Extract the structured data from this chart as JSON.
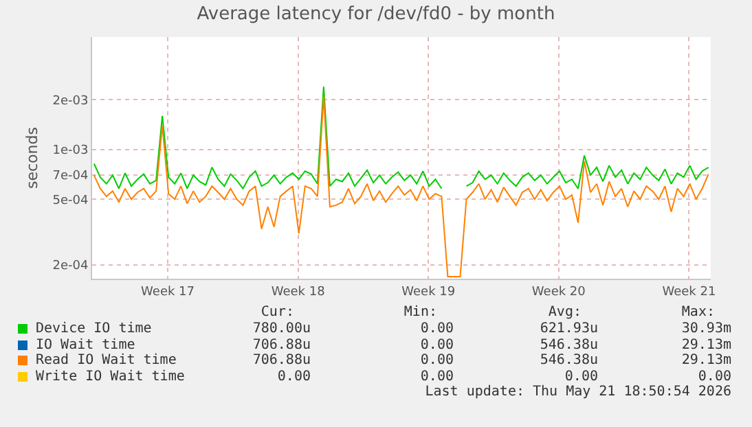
{
  "chart_data": {
    "type": "line",
    "title": "Average latency for /dev/fd0 - by month",
    "ylabel": "seconds",
    "log": true,
    "grid": true,
    "legend": "bottom",
    "xlim": [
      "2026-04-18T13:30",
      "2026-05-21T19:00"
    ],
    "xticks": [
      {
        "value": "2026-04-22T15:00",
        "label": "Week 17"
      },
      {
        "value": "2026-04-29T15:00",
        "label": "Week 18"
      },
      {
        "value": "2026-05-06T15:00",
        "label": "Week 19"
      },
      {
        "value": "2026-05-13T15:00",
        "label": "Week 20"
      },
      {
        "value": "2026-05-20T15:00",
        "label": "Week 21"
      }
    ],
    "ylim": [
      0.000165,
      0.0048
    ],
    "yticks": [
      {
        "value": 0.0002,
        "label": "2e-04"
      },
      {
        "value": 0.0005,
        "label": "5e-04"
      },
      {
        "value": 0.0007,
        "label": "7e-04"
      },
      {
        "value": 0.001,
        "label": "1e-03"
      },
      {
        "value": 0.002,
        "label": "2e-03"
      }
    ],
    "x": [
      "2026-04-18T16:00",
      "2026-04-19T00:00",
      "2026-04-19T08:00",
      "2026-04-19T16:00",
      "2026-04-20T00:00",
      "2026-04-20T08:00",
      "2026-04-20T16:00",
      "2026-04-21T00:00",
      "2026-04-21T08:00",
      "2026-04-21T16:00",
      "2026-04-22T00:00",
      "2026-04-22T08:00",
      "2026-04-22T16:00",
      "2026-04-23T00:00",
      "2026-04-23T08:00",
      "2026-04-23T16:00",
      "2026-04-24T00:00",
      "2026-04-24T08:00",
      "2026-04-24T16:00",
      "2026-04-25T00:00",
      "2026-04-25T08:00",
      "2026-04-25T16:00",
      "2026-04-26T00:00",
      "2026-04-26T08:00",
      "2026-04-26T16:00",
      "2026-04-27T00:00",
      "2026-04-27T08:00",
      "2026-04-27T16:00",
      "2026-04-28T00:00",
      "2026-04-28T08:00",
      "2026-04-28T16:00",
      "2026-04-29T00:00",
      "2026-04-29T08:00",
      "2026-04-29T16:00",
      "2026-04-30T00:00",
      "2026-04-30T08:00",
      "2026-04-30T16:00",
      "2026-05-01T00:00",
      "2026-05-01T08:00",
      "2026-05-01T16:00",
      "2026-05-02T00:00",
      "2026-05-02T08:00",
      "2026-05-02T16:00",
      "2026-05-03T00:00",
      "2026-05-03T08:00",
      "2026-05-03T16:00",
      "2026-05-04T00:00",
      "2026-05-04T08:00",
      "2026-05-04T16:00",
      "2026-05-05T00:00",
      "2026-05-05T08:00",
      "2026-05-05T16:00",
      "2026-05-06T00:00",
      "2026-05-06T08:00",
      "2026-05-06T16:00",
      "2026-05-07T00:00",
      "2026-05-07T08:00",
      "2026-05-07T16:00",
      "2026-05-08T00:00",
      "2026-05-08T08:00",
      "2026-05-08T16:00",
      "2026-05-09T00:00",
      "2026-05-09T08:00",
      "2026-05-09T16:00",
      "2026-05-10T00:00",
      "2026-05-10T08:00",
      "2026-05-10T16:00",
      "2026-05-11T00:00",
      "2026-05-11T08:00",
      "2026-05-11T16:00",
      "2026-05-12T00:00",
      "2026-05-12T08:00",
      "2026-05-12T16:00",
      "2026-05-13T00:00",
      "2026-05-13T08:00",
      "2026-05-13T16:00",
      "2026-05-14T00:00",
      "2026-05-14T08:00",
      "2026-05-14T16:00",
      "2026-05-15T00:00",
      "2026-05-15T08:00",
      "2026-05-15T16:00",
      "2026-05-16T00:00",
      "2026-05-16T08:00",
      "2026-05-16T16:00",
      "2026-05-17T00:00",
      "2026-05-17T08:00",
      "2026-05-17T16:00",
      "2026-05-18T00:00",
      "2026-05-18T08:00",
      "2026-05-18T16:00",
      "2026-05-19T00:00",
      "2026-05-19T08:00",
      "2026-05-19T16:00",
      "2026-05-20T00:00",
      "2026-05-20T08:00",
      "2026-05-20T16:00",
      "2026-05-21T00:00",
      "2026-05-21T08:00",
      "2026-05-21T16:00"
    ],
    "series": [
      {
        "name": "Device IO time",
        "color": "#00cc00",
        "values": [
          0.00082,
          0.00068,
          0.00062,
          0.0007,
          0.00058,
          0.00072,
          0.0006,
          0.00066,
          0.00071,
          0.00062,
          0.00065,
          0.0016,
          0.00068,
          0.00062,
          0.00072,
          0.00058,
          0.0007,
          0.00064,
          0.00061,
          0.00078,
          0.00066,
          0.0006,
          0.00071,
          0.00065,
          0.00058,
          0.00068,
          0.00074,
          0.0006,
          0.00063,
          0.0007,
          0.00062,
          0.00068,
          0.00072,
          0.00066,
          0.00074,
          0.00071,
          0.00062,
          0.0024,
          0.0006,
          0.00066,
          0.00064,
          0.00072,
          0.0006,
          0.00067,
          0.00075,
          0.00063,
          0.0007,
          0.00062,
          0.00068,
          0.00073,
          0.00065,
          0.0007,
          0.00062,
          0.00074,
          0.0006,
          0.00066,
          0.00058,
          null,
          null,
          null,
          0.0006,
          0.00063,
          0.00074,
          0.00066,
          0.0007,
          0.00062,
          0.00072,
          0.00065,
          0.0006,
          0.00068,
          0.00072,
          0.00065,
          0.0007,
          0.00062,
          0.00068,
          0.00074,
          0.00063,
          0.00066,
          0.00058,
          0.00092,
          0.0007,
          0.00078,
          0.00064,
          0.0008,
          0.00068,
          0.00075,
          0.00062,
          0.00072,
          0.00066,
          0.00078,
          0.0007,
          0.00065,
          0.00076,
          0.00062,
          0.00072,
          0.00068,
          0.0008,
          0.00066,
          0.00074,
          0.00078
        ]
      },
      {
        "name": "IO Wait time",
        "color": "#0066b3",
        "values": [
          null,
          null,
          null,
          null,
          null,
          null,
          null,
          null,
          null,
          null,
          null,
          null,
          null,
          null,
          null,
          null,
          null,
          null,
          null,
          null,
          null,
          null,
          null,
          null,
          null,
          null,
          null,
          null,
          null,
          null,
          null,
          null,
          null,
          null,
          null,
          null,
          null,
          null,
          null,
          null,
          null,
          null,
          null,
          null,
          null,
          null,
          null,
          null,
          null,
          null,
          null,
          null,
          null,
          null,
          null,
          null,
          null,
          null,
          null,
          null,
          null,
          null,
          null,
          null,
          null,
          null,
          null,
          null,
          null,
          null,
          null,
          null,
          null,
          null,
          null,
          null,
          null,
          null,
          null,
          null,
          null,
          null,
          null,
          null,
          null,
          null,
          null,
          null,
          null,
          null,
          null,
          null,
          null,
          null,
          null,
          null,
          null,
          null,
          null,
          null
        ]
      },
      {
        "name": "Read IO Wait time",
        "color": "#ff8000",
        "values": [
          0.0007,
          0.00058,
          0.00052,
          0.00056,
          0.00048,
          0.00058,
          0.0005,
          0.00055,
          0.00058,
          0.00051,
          0.00056,
          0.0014,
          0.00054,
          0.0005,
          0.0006,
          0.00047,
          0.00056,
          0.00048,
          0.00052,
          0.0006,
          0.00055,
          0.0005,
          0.00058,
          0.0005,
          0.00046,
          0.00056,
          0.0006,
          0.00033,
          0.00045,
          0.00034,
          0.00052,
          0.00056,
          0.0006,
          0.00031,
          0.0006,
          0.00058,
          0.00052,
          0.0021,
          0.00045,
          0.00046,
          0.00048,
          0.00058,
          0.00047,
          0.00052,
          0.00062,
          0.00049,
          0.00056,
          0.00048,
          0.00054,
          0.0006,
          0.00053,
          0.00057,
          0.00049,
          0.0006,
          0.0005,
          0.00054,
          0.00052,
          0.00017,
          0.00017,
          0.00017,
          0.0005,
          0.00055,
          0.00062,
          0.0005,
          0.00057,
          0.00048,
          0.00059,
          0.00052,
          0.00046,
          0.00055,
          0.00058,
          0.0005,
          0.00057,
          0.00049,
          0.00055,
          0.0006,
          0.0005,
          0.00053,
          0.00036,
          0.00085,
          0.00055,
          0.00062,
          0.00046,
          0.00064,
          0.00052,
          0.00058,
          0.00045,
          0.00056,
          0.0005,
          0.0006,
          0.00056,
          0.0005,
          0.0006,
          0.00042,
          0.00058,
          0.00052,
          0.00062,
          0.0005,
          0.00058,
          0.00071
        ]
      },
      {
        "name": "Write IO Wait time",
        "color": "#ffcc00",
        "values": [
          null,
          null,
          null,
          null,
          null,
          null,
          null,
          null,
          null,
          null,
          null,
          null,
          null,
          null,
          null,
          null,
          null,
          null,
          null,
          null,
          null,
          null,
          null,
          null,
          null,
          null,
          null,
          null,
          null,
          null,
          null,
          null,
          null,
          null,
          null,
          null,
          null,
          null,
          null,
          null,
          null,
          null,
          null,
          null,
          null,
          null,
          null,
          null,
          null,
          null,
          null,
          null,
          null,
          null,
          null,
          null,
          null,
          null,
          null,
          null,
          null,
          null,
          null,
          null,
          null,
          null,
          null,
          null,
          null,
          null,
          null,
          null,
          null,
          null,
          null,
          null,
          null,
          null,
          null,
          null,
          null,
          null,
          null,
          null,
          null,
          null,
          null,
          null,
          null,
          null,
          null,
          null,
          null,
          null,
          null,
          null,
          null,
          null,
          null,
          null
        ]
      }
    ],
    "annotations": [
      "Cur:",
      "Min:",
      "Avg:",
      "Max:",
      "780.00u",
      "0.00",
      "621.93u",
      "30.93m",
      "706.88u",
      "0.00",
      "546.38u",
      "29.13m",
      "706.88u",
      "0.00",
      "546.38u",
      "29.13m",
      "0.00",
      "0.00",
      "0.00",
      "0.00",
      "Last update: Thu May 21 18:50:54 2026"
    ]
  }
}
